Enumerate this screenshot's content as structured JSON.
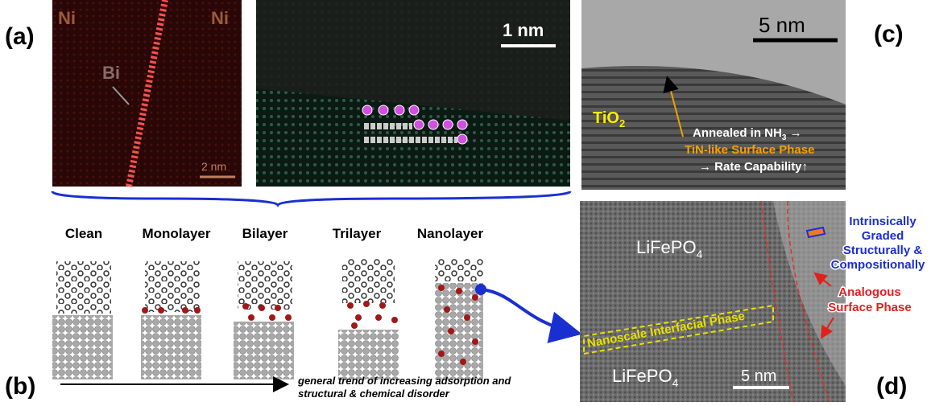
{
  "panel_a": {
    "label": "(a)",
    "left_image": {
      "element_1": "Ni",
      "element_2": "Ni",
      "column": "Bi",
      "scale": "2 nm"
    },
    "right_image": {
      "scale": "1 nm"
    }
  },
  "panel_b": {
    "label": "(b)",
    "stages": [
      "Clean",
      "Monolayer",
      "Bilayer",
      "Trilayer",
      "Nanolayer"
    ],
    "trend": [
      "general trend of increasing adsorption and",
      "structural & chemical disorder"
    ]
  },
  "panel_c": {
    "label": "(c)",
    "scale": "5 nm",
    "material": {
      "text": "TiO",
      "sub": "2"
    },
    "note_1": {
      "text": "Annealed in NH",
      "sub": "3",
      "tail": " →"
    },
    "note_2": "TiN-like Surface Phase",
    "note_3": "→ Rate Capability↑"
  },
  "panel_d": {
    "label": "(d)",
    "material_top": {
      "text": "LiFePO",
      "sub": "4"
    },
    "material_bottom": {
      "text": "LiFePO",
      "sub": "4"
    },
    "graded": [
      "Intrinsically",
      "Graded",
      "Structurally &",
      "Compositionally"
    ],
    "surface": [
      "Analogous",
      "Surface Phase"
    ],
    "interfacial": "Nanoscale Interfacial Phase",
    "scale": "5 nm"
  }
}
